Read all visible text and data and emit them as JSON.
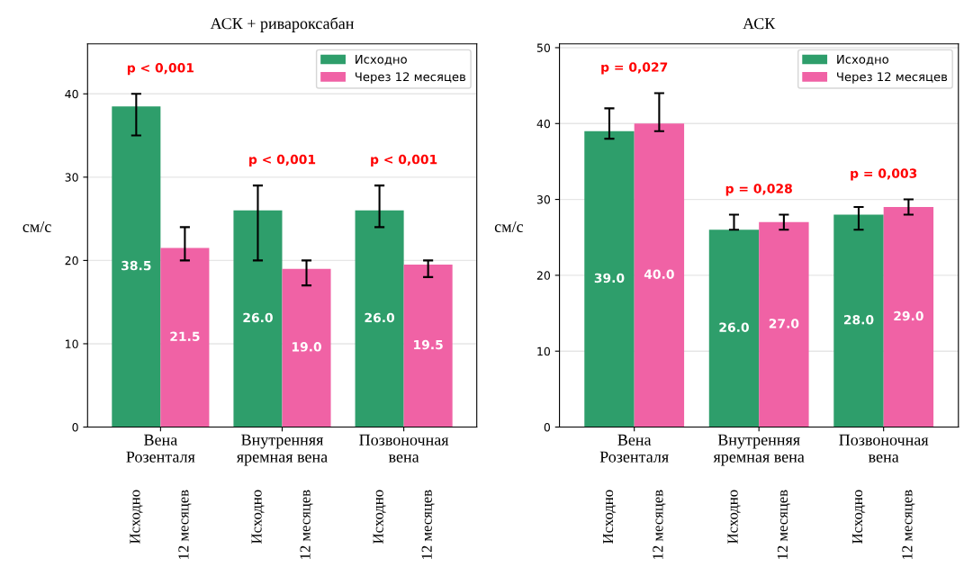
{
  "chart_data": [
    {
      "type": "bar",
      "title": "АСК + ривароксабан",
      "ylabel": "см/с",
      "categories": [
        "Вена\nРозенталя",
        "Внутренняя\nяремная вена",
        "Позвоночная\nвена"
      ],
      "ylim": [
        0,
        46
      ],
      "yticks": [
        0,
        10,
        20,
        30,
        40
      ],
      "grid": "y",
      "legend": "top right",
      "series": [
        {
          "name": "Исходно",
          "color": "#2e9e6b",
          "values": [
            38.5,
            26.0,
            26.0
          ],
          "errors": [
            [
              35,
              40
            ],
            [
              20,
              29
            ],
            [
              24,
              29
            ]
          ],
          "value_labels": [
            "38.5",
            "26.0",
            "26.0"
          ]
        },
        {
          "name": "Через 12 месяцев",
          "color": "#f062a5",
          "values": [
            21.5,
            19.0,
            19.5
          ],
          "errors": [
            [
              20,
              24
            ],
            [
              17,
              20
            ],
            [
              18,
              20
            ]
          ],
          "value_labels": [
            "21.5",
            "19.0",
            "19.5"
          ]
        }
      ],
      "annotations": [
        "p < 0,001",
        "p < 0,001",
        "p < 0,001",
        "Исходно",
        "12 месяцев",
        "Исходно",
        "12 месяцев",
        "Исходно",
        "12 месяцев"
      ]
    },
    {
      "type": "bar",
      "title": "АСК",
      "ylabel": "см/с",
      "categories": [
        "Вена\nРозенталя",
        "Внутренняя\nяремная вена",
        "Позвоночная\nвена"
      ],
      "ylim": [
        0,
        50.5
      ],
      "yticks": [
        0,
        10,
        20,
        30,
        40,
        50
      ],
      "grid": "y",
      "legend": "top right",
      "series": [
        {
          "name": "Исходно",
          "color": "#2e9e6b",
          "values": [
            39.0,
            26.0,
            28.0
          ],
          "errors": [
            [
              38,
              42
            ],
            [
              26,
              28
            ],
            [
              26,
              29
            ]
          ],
          "value_labels": [
            "39.0",
            "26.0",
            "28.0"
          ]
        },
        {
          "name": "Через 12 месяцев",
          "color": "#f062a5",
          "values": [
            40.0,
            27.0,
            29.0
          ],
          "errors": [
            [
              39,
              44
            ],
            [
              26,
              28
            ],
            [
              28,
              30
            ]
          ],
          "value_labels": [
            "40.0",
            "27.0",
            "29.0"
          ]
        }
      ],
      "annotations": [
        "p = 0,027",
        "p = 0,028",
        "p = 0,003",
        "Исходно",
        "12 месяцев",
        "Исходно",
        "12 месяцев",
        "Исходно",
        "12 месяцев"
      ]
    }
  ]
}
